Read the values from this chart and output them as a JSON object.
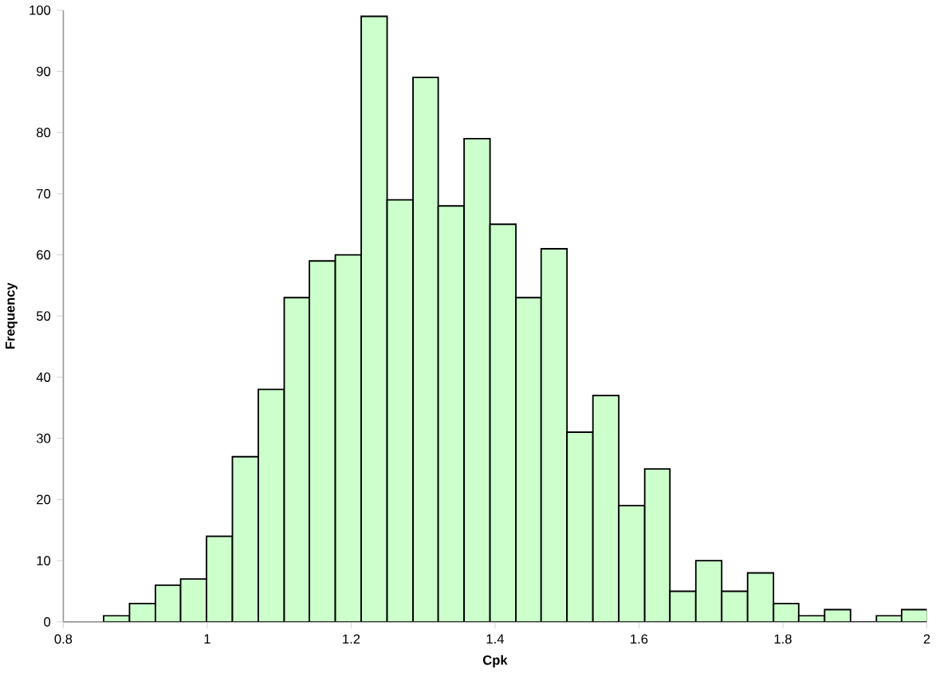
{
  "chart_data": {
    "type": "histogram",
    "xlabel": "Cpk",
    "ylabel": "Frequency",
    "bins": [
      0.856,
      0.892,
      0.928,
      0.963,
      0.999,
      1.035,
      1.071,
      1.107,
      1.142,
      1.178,
      1.214,
      1.25,
      1.286,
      1.321,
      1.357,
      1.393,
      1.429,
      1.464,
      1.5,
      1.536,
      1.572,
      1.608,
      1.643,
      1.679,
      1.715,
      1.751,
      1.787,
      1.822,
      1.858,
      1.894,
      1.93,
      1.965,
      2.001
    ],
    "values": [
      1,
      3,
      6,
      7,
      14,
      27,
      38,
      53,
      59,
      60,
      99,
      69,
      89,
      68,
      79,
      65,
      53,
      61,
      31,
      37,
      19,
      25,
      5,
      10,
      5,
      8,
      3,
      1,
      2,
      0,
      1,
      2
    ],
    "color": "#ccffcc",
    "xlim": [
      0.8,
      2
    ],
    "ylim": [
      0,
      100
    ],
    "xticks": [
      {
        "value": 0.8,
        "label": "0.8"
      },
      1,
      {
        "value": 1.2,
        "label": "1.2"
      },
      {
        "value": 1.4,
        "label": "1.4"
      },
      {
        "value": 1.6,
        "label": "1.6"
      },
      {
        "value": 1.8,
        "label": "1.8"
      },
      2
    ],
    "yticks": [
      0,
      10,
      20,
      30,
      40,
      50,
      60,
      70,
      80,
      90,
      100
    ],
    "grid": false
  }
}
